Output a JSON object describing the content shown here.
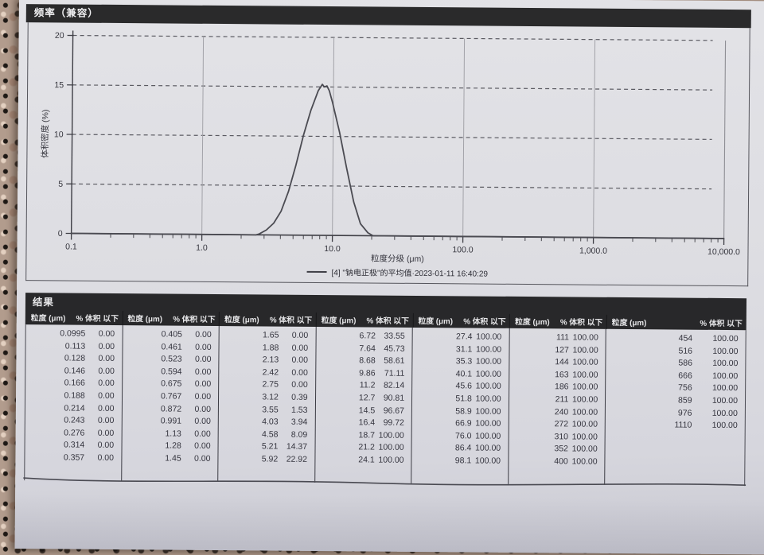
{
  "page": {
    "chart_section": {
      "title": "频率（兼容）",
      "y_axis_label": "体积密度 (%)",
      "x_axis_label": "粒度分级 (μm)",
      "legend": "[4] \"钠电正极\"的平均值·2023-01-11 16:40:29"
    },
    "results_section": {
      "title": "结果",
      "col_headers": {
        "size": "粒度 (μm)",
        "pct": "% 体积 以下"
      },
      "groups": [
        [
          [
            "0.0995",
            "0.00"
          ],
          [
            "0.113",
            "0.00"
          ],
          [
            "0.128",
            "0.00"
          ],
          [
            "0.146",
            "0.00"
          ],
          [
            "0.166",
            "0.00"
          ],
          [
            "0.188",
            "0.00"
          ],
          [
            "0.214",
            "0.00"
          ],
          [
            "0.243",
            "0.00"
          ],
          [
            "0.276",
            "0.00"
          ],
          [
            "0.314",
            "0.00"
          ],
          [
            "0.357",
            "0.00"
          ]
        ],
        [
          [
            "0.405",
            "0.00"
          ],
          [
            "0.461",
            "0.00"
          ],
          [
            "0.523",
            "0.00"
          ],
          [
            "0.594",
            "0.00"
          ],
          [
            "0.675",
            "0.00"
          ],
          [
            "0.767",
            "0.00"
          ],
          [
            "0.872",
            "0.00"
          ],
          [
            "0.991",
            "0.00"
          ],
          [
            "1.13",
            "0.00"
          ],
          [
            "1.28",
            "0.00"
          ],
          [
            "1.45",
            "0.00"
          ]
        ],
        [
          [
            "1.65",
            "0.00"
          ],
          [
            "1.88",
            "0.00"
          ],
          [
            "2.13",
            "0.00"
          ],
          [
            "2.42",
            "0.00"
          ],
          [
            "2.75",
            "0.00"
          ],
          [
            "3.12",
            "0.39"
          ],
          [
            "3.55",
            "1.53"
          ],
          [
            "4.03",
            "3.94"
          ],
          [
            "4.58",
            "8.09"
          ],
          [
            "5.21",
            "14.37"
          ],
          [
            "5.92",
            "22.92"
          ]
        ],
        [
          [
            "6.72",
            "33.55"
          ],
          [
            "7.64",
            "45.73"
          ],
          [
            "8.68",
            "58.61"
          ],
          [
            "9.86",
            "71.11"
          ],
          [
            "11.2",
            "82.14"
          ],
          [
            "12.7",
            "90.81"
          ],
          [
            "14.5",
            "96.67"
          ],
          [
            "16.4",
            "99.72"
          ],
          [
            "18.7",
            "100.00"
          ],
          [
            "21.2",
            "100.00"
          ],
          [
            "24.1",
            "100.00"
          ]
        ],
        [
          [
            "27.4",
            "100.00"
          ],
          [
            "31.1",
            "100.00"
          ],
          [
            "35.3",
            "100.00"
          ],
          [
            "40.1",
            "100.00"
          ],
          [
            "45.6",
            "100.00"
          ],
          [
            "51.8",
            "100.00"
          ],
          [
            "58.9",
            "100.00"
          ],
          [
            "66.9",
            "100.00"
          ],
          [
            "76.0",
            "100.00"
          ],
          [
            "86.4",
            "100.00"
          ],
          [
            "98.1",
            "100.00"
          ]
        ],
        [
          [
            "111",
            "100.00"
          ],
          [
            "127",
            "100.00"
          ],
          [
            "144",
            "100.00"
          ],
          [
            "163",
            "100.00"
          ],
          [
            "186",
            "100.00"
          ],
          [
            "211",
            "100.00"
          ],
          [
            "240",
            "100.00"
          ],
          [
            "272",
            "100.00"
          ],
          [
            "310",
            "100.00"
          ],
          [
            "352",
            "100.00"
          ],
          [
            "400",
            "100.00"
          ]
        ],
        [
          [
            "454",
            "100.00"
          ],
          [
            "516",
            "100.00"
          ],
          [
            "586",
            "100.00"
          ],
          [
            "666",
            "100.00"
          ],
          [
            "756",
            "100.00"
          ],
          [
            "859",
            "100.00"
          ],
          [
            "976",
            "100.00"
          ],
          [
            "1110",
            "100.00"
          ]
        ]
      ]
    }
  },
  "chart_data": {
    "type": "line",
    "title": "频率（兼容）",
    "xlabel": "粒度分级 (μm)",
    "ylabel": "体积密度 (%)",
    "x_scale": "log",
    "x_range": [
      0.1,
      10000
    ],
    "y_range": [
      0,
      20
    ],
    "y_ticks": [
      0,
      5,
      10,
      15,
      20
    ],
    "x_tick_labels": [
      "0.1",
      "1.0",
      "10.0",
      "100.0",
      "1,000.0",
      "10,000.0"
    ],
    "grid": "dashed-horizontal, solid vertical at decades",
    "legend_position": "bottom",
    "series": [
      {
        "name": "[4] \"钠电正极\"的平均值·2023-01-11 16:40:29",
        "x": [
          2.6,
          2.75,
          3.12,
          3.55,
          4.03,
          4.58,
          5.21,
          5.92,
          6.72,
          7.64,
          8.2,
          8.5,
          8.9,
          9.3,
          9.86,
          11.2,
          12.7,
          14.5,
          16.4,
          18.7,
          20.5
        ],
        "y_density_pct": [
          0,
          0.1,
          0.5,
          1.2,
          2.4,
          4.4,
          7.1,
          10.1,
          12.6,
          14.6,
          15.25,
          15.0,
          15.1,
          14.6,
          13.4,
          10.4,
          6.9,
          3.4,
          1.2,
          0.3,
          0
        ]
      }
    ]
  }
}
